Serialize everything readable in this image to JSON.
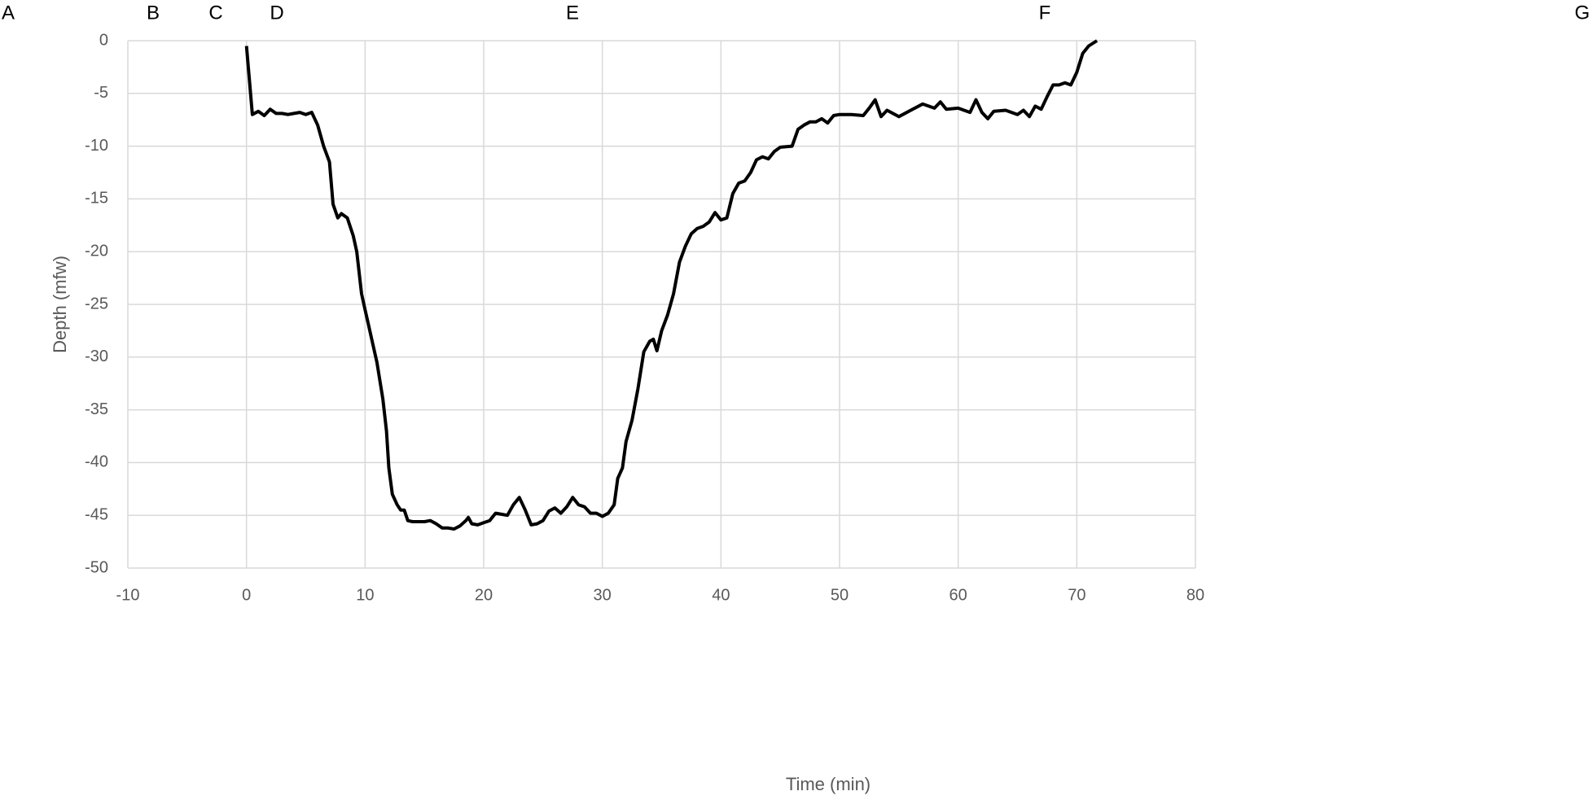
{
  "chart_data": {
    "type": "line",
    "annotations": [
      "A",
      "B",
      "C",
      "D",
      "E",
      "F",
      "G"
    ],
    "xlabel": "Time (min)",
    "ylabel": "Depth (mfw)",
    "xlim": [
      -10,
      80
    ],
    "xticks": [
      -10,
      0,
      10,
      20,
      30,
      40,
      50,
      60,
      70,
      80
    ],
    "ylim": [
      -50,
      0
    ],
    "yticks": [
      0,
      -5,
      -10,
      -15,
      -20,
      -25,
      -30,
      -35,
      -40,
      -45,
      -50
    ],
    "grid": true,
    "series": [
      {
        "color": "#000000",
        "x": [
          0,
          0.5,
          1,
          1.5,
          2,
          2.5,
          3,
          3.5,
          4,
          4.5,
          5,
          5.5,
          6,
          6.5,
          7,
          7.3,
          7.7,
          8,
          8.5,
          9,
          9.3,
          9.7,
          10,
          10.3,
          10.7,
          11,
          11.5,
          11.8,
          12,
          12.3,
          12.7,
          13,
          13.3,
          13.6,
          14,
          15,
          15.5,
          16,
          16.5,
          17,
          17.5,
          18,
          18.5,
          18.7,
          19,
          19.5,
          20,
          20.5,
          21,
          21.5,
          22,
          22.5,
          23,
          23.5,
          24,
          24.5,
          25,
          25.5,
          26,
          26.5,
          27,
          27.5,
          28,
          28.5,
          29,
          29.5,
          30,
          30.5,
          31,
          31.3,
          31.7,
          32,
          32.5,
          33,
          33.5,
          34,
          34.3,
          34.6,
          35,
          35.5,
          36,
          36.5,
          37,
          37.5,
          38,
          38.5,
          39,
          39.5,
          40,
          40.5,
          41,
          41.5,
          42,
          42.5,
          43,
          43.5,
          44,
          44.5,
          45,
          46,
          46.5,
          47,
          47.5,
          48,
          48.5,
          49,
          49.5,
          50,
          51,
          52,
          52.5,
          53,
          53.5,
          54,
          55,
          56,
          57,
          58,
          58.5,
          59,
          60,
          61,
          61.5,
          62,
          62.5,
          63,
          64,
          65,
          65.5,
          66,
          66.5,
          67,
          67.5,
          68,
          68.5,
          69,
          69.5,
          70,
          70.5,
          71,
          71.7
        ],
        "values": [
          -0.5,
          -7,
          -6.7,
          -7.1,
          -6.5,
          -6.9,
          -6.9,
          -7,
          -6.9,
          -6.8,
          -7,
          -6.8,
          -8,
          -10,
          -11.5,
          -15.5,
          -16.8,
          -16.4,
          -16.8,
          -18.5,
          -20,
          -24,
          -25.5,
          -27,
          -29,
          -30.5,
          -34,
          -37,
          -40.5,
          -43,
          -44,
          -44.5,
          -44.5,
          -45.5,
          -45.6,
          -45.6,
          -45.5,
          -45.8,
          -46.2,
          -46.2,
          -46.3,
          -46,
          -45.5,
          -45.2,
          -45.8,
          -45.9,
          -45.7,
          -45.5,
          -44.8,
          -44.9,
          -45,
          -44,
          -43.3,
          -44.5,
          -45.9,
          -45.8,
          -45.5,
          -44.6,
          -44.3,
          -44.8,
          -44.2,
          -43.3,
          -44,
          -44.2,
          -44.8,
          -44.8,
          -45.1,
          -44.8,
          -44,
          -41.5,
          -40.5,
          -38,
          -36,
          -33,
          -29.5,
          -28.5,
          -28.3,
          -29.4,
          -27.5,
          -26,
          -24,
          -21,
          -19.5,
          -18.3,
          -17.8,
          -17.6,
          -17.2,
          -16.3,
          -17,
          -16.8,
          -14.5,
          -13.5,
          -13.3,
          -12.5,
          -11.3,
          -11,
          -11.2,
          -10.5,
          -10.1,
          -10,
          -8.4,
          -8,
          -7.7,
          -7.7,
          -7.4,
          -7.8,
          -7.1,
          -7,
          -7,
          -7.1,
          -6.4,
          -5.6,
          -7.2,
          -6.6,
          -7.2,
          -6.6,
          -6,
          -6.4,
          -5.8,
          -6.5,
          -6.4,
          -6.8,
          -5.6,
          -6.8,
          -7.4,
          -6.7,
          -6.6,
          -7,
          -6.6,
          -7.2,
          -6.2,
          -6.5,
          -5.3,
          -4.2,
          -4.2,
          -4,
          -4.2,
          -3,
          -1.2,
          -0.5,
          0
        ]
      }
    ]
  }
}
